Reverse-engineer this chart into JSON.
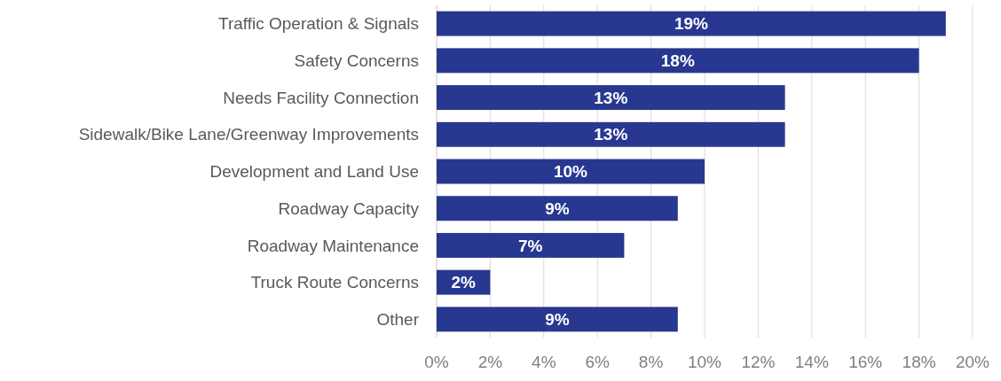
{
  "chart_data": {
    "type": "bar",
    "orientation": "horizontal",
    "categories": [
      "Traffic Operation & Signals",
      "Safety Concerns",
      "Needs Facility Connection",
      "Sidewalk/Bike Lane/Greenway Improvements",
      "Development and Land Use",
      "Roadway Capacity",
      "Roadway Maintenance",
      "Truck Route Concerns",
      "Other"
    ],
    "values": [
      19,
      18,
      13,
      13,
      10,
      9,
      7,
      2,
      9
    ],
    "value_labels": [
      "19%",
      "18%",
      "13%",
      "13%",
      "10%",
      "9%",
      "7%",
      "2%",
      "9%"
    ],
    "color": "#283891",
    "xlim": [
      0,
      20
    ],
    "xticks": [
      {
        "value": 0,
        "label": "0%"
      },
      {
        "value": 2,
        "label": "2%"
      },
      {
        "value": 4,
        "label": "4%"
      },
      {
        "value": 6,
        "label": "6%"
      },
      {
        "value": 8,
        "label": "8%"
      },
      {
        "value": 10,
        "label": "10%"
      },
      {
        "value": 12,
        "label": "12%"
      },
      {
        "value": 14,
        "label": "14%"
      },
      {
        "value": 16,
        "label": "16%"
      },
      {
        "value": 18,
        "label": "18%"
      },
      {
        "value": 20,
        "label": "20%"
      }
    ],
    "grid": "x"
  }
}
